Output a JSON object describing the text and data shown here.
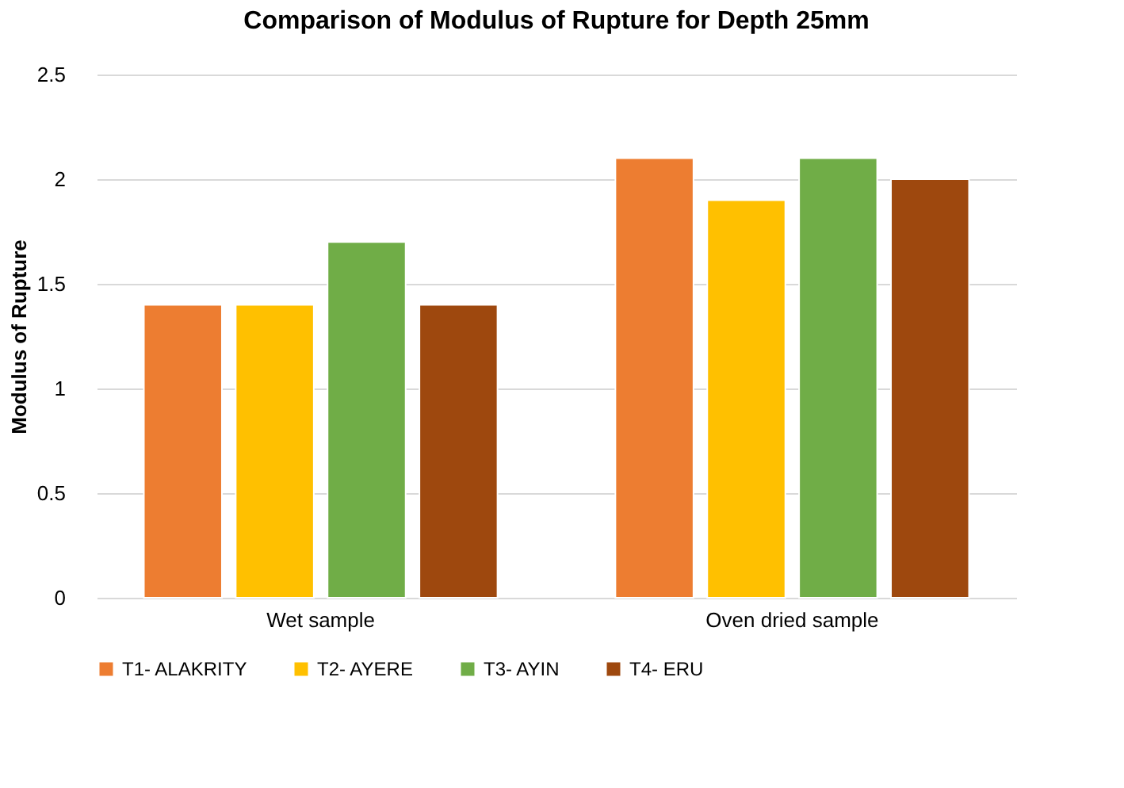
{
  "chart_data": {
    "type": "bar",
    "title": "Comparison of Modulus of Rupture for Depth 25mm",
    "ylabel": "Modulus of Rupture",
    "categories": [
      "Wet sample",
      "Oven dried sample"
    ],
    "series": [
      {
        "name": "T1- ALAKRITY",
        "color": "#ed7d31",
        "values": [
          1.4,
          2.1
        ]
      },
      {
        "name": "T2- AYERE",
        "color": "#ffc000",
        "values": [
          1.4,
          1.9
        ]
      },
      {
        "name": "T3- AYIN",
        "color": "#70ad47",
        "values": [
          1.7,
          2.1
        ]
      },
      {
        "name": "T4- ERU",
        "color": "#9e480e",
        "values": [
          1.4,
          2.0
        ]
      }
    ],
    "ylim": [
      0,
      2.5
    ],
    "yticks": [
      0,
      0.5,
      1,
      1.5,
      2,
      2.5
    ],
    "grid": "y",
    "legend": "bottom"
  }
}
